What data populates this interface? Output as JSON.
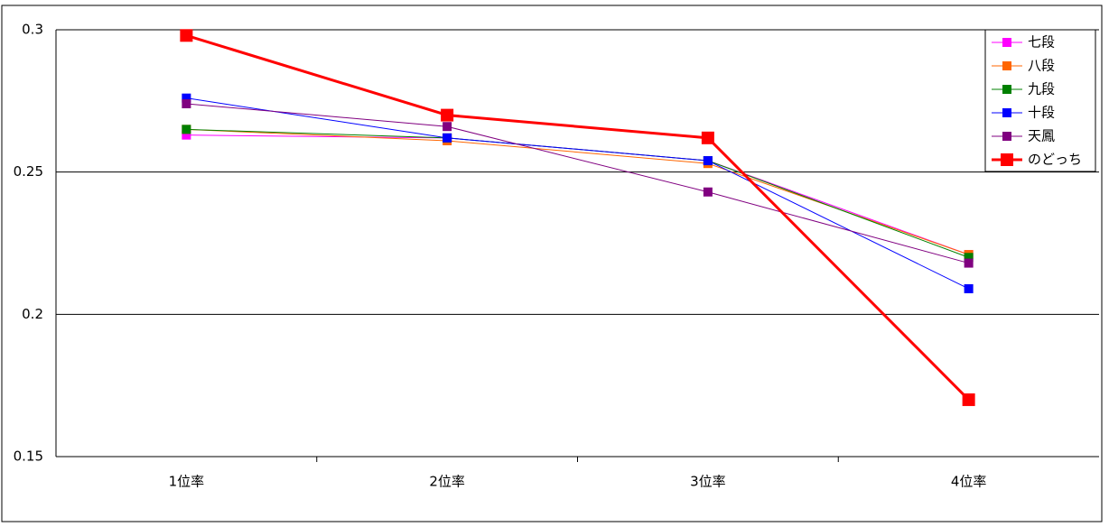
{
  "chart_data": {
    "type": "line",
    "categories": [
      "1位率",
      "2位率",
      "3位率",
      "4位率"
    ],
    "series": [
      {
        "name": "七段",
        "color": "#ff00ff",
        "line_width": 1,
        "values": [
          0.263,
          0.262,
          0.254,
          0.221
        ]
      },
      {
        "name": "八段",
        "color": "#ff6600",
        "line_width": 1,
        "values": [
          0.265,
          0.261,
          0.253,
          0.221
        ]
      },
      {
        "name": "九段",
        "color": "#008000",
        "line_width": 1,
        "values": [
          0.265,
          0.262,
          0.254,
          0.22
        ]
      },
      {
        "name": "十段",
        "color": "#0000ff",
        "line_width": 1,
        "values": [
          0.276,
          0.262,
          0.254,
          0.209
        ]
      },
      {
        "name": "天鳳",
        "color": "#800080",
        "line_width": 1,
        "values": [
          0.274,
          0.266,
          0.243,
          0.218
        ]
      },
      {
        "name": "のどっち",
        "color": "#ff0000",
        "line_width": 3,
        "values": [
          0.298,
          0.27,
          0.262,
          0.17
        ]
      }
    ],
    "ylim": [
      0.15,
      0.3
    ],
    "yticks": [
      0.15,
      0.2,
      0.25,
      0.3
    ],
    "grid": true,
    "legend": "upper right"
  }
}
